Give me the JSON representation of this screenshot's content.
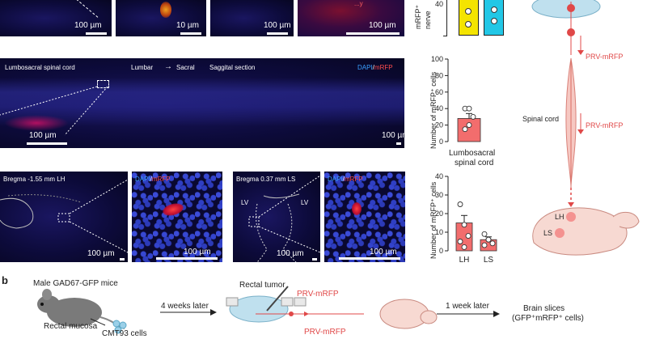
{
  "panel_b_label": "b",
  "top_row": {
    "scales": [
      "100 µm",
      "10 µm",
      "100 µm",
      "100 µm"
    ],
    "overlay_fragment": "...y",
    "chart_partial": {
      "ylabel_lines": [
        "mRFP⁺",
        "nerve"
      ],
      "tick": "40"
    }
  },
  "spinal_panel": {
    "title": "Lumbosacral spinal cord",
    "lumbar": "Lumbar",
    "arrow": "→",
    "sacral": "Sacral",
    "section": "Saggital section",
    "dapi": "DAPI",
    "slash": "/",
    "mrfp": "mRFP",
    "scale_main": "100 µm",
    "scale_inset": "100 µm"
  },
  "brain_panels": {
    "lh": {
      "title": "Bregma -1.55 mm  LH",
      "scale_main": "100 µm"
    },
    "lh_inset": {
      "dapi": "DAPI",
      "slash": "/",
      "mrfp": "mRFP",
      "scale": "100 µm"
    },
    "ls": {
      "title": "Bregma 0.37 mm  LS",
      "lv_left": "LV",
      "lv_right": "LV",
      "scale_main": "100 µm"
    },
    "ls_inset": {
      "dapi": "DAPI",
      "slash": "/",
      "mrfp": "mRFP",
      "scale": "100 µm"
    }
  },
  "chart_spinal": {
    "ylabel": "Number of mRFP⁺ cells",
    "xlabel_lines": [
      "Lumbosacral",
      "spinal cord"
    ],
    "ticks": [
      "0",
      "20",
      "40",
      "60",
      "80",
      "100"
    ]
  },
  "chart_brain": {
    "ylabel": "Number of mRFP⁺ cells",
    "categories": [
      "LH",
      "LS"
    ],
    "ticks": [
      "0",
      "10",
      "20",
      "30",
      "40"
    ]
  },
  "chart_data": [
    {
      "type": "bar",
      "categories": [
        "Lumbosacral spinal cord"
      ],
      "values": [
        28
      ],
      "error": [
        6
      ],
      "points": [
        [
          40,
          40,
          30,
          15,
          20
        ]
      ],
      "ylim": [
        0,
        100
      ],
      "ylabel": "Number of mRFP⁺ cells",
      "colors": [
        "#f26d6d"
      ]
    },
    {
      "type": "bar",
      "categories": [
        "LH",
        "LS"
      ],
      "values": [
        15,
        6
      ],
      "error": [
        4,
        1.5
      ],
      "points": [
        [
          25,
          14,
          8,
          5,
          2
        ],
        [
          9,
          6,
          4,
          3,
          6
        ]
      ],
      "ylim": [
        0,
        40
      ],
      "ylabel": "Number of mRFP⁺ cells",
      "colors": [
        "#f26d6d",
        "#f26d6d"
      ]
    }
  ],
  "schematic": {
    "prv_top": "PRV-mRFP",
    "spinal_cord": "Spinal cord",
    "prv_mid": "PRV-mRFP",
    "lh": "LH",
    "ls": "LS"
  },
  "panel_b": {
    "mouse_title": "Male GAD67-GFP mice",
    "rectal_mucosa": "Rectal mucosa",
    "cmt93": "CMT93 cells",
    "four_weeks": "4 weeks later",
    "rectal_tumor": "Rectal tumor",
    "prv_inject": "PRV-mRFP",
    "prv_travel": "PRV-mRFP",
    "one_week": "1 week later",
    "brain_slices": "Brain slices",
    "brain_slices_sub": "(GFP⁺mRFP⁺ cells)"
  },
  "colors": {
    "red": "#e04848",
    "bar": "#f26d6d",
    "yellow": "#f4e400",
    "cyan": "#22c7e6",
    "dapi": "#3aa0ff"
  }
}
